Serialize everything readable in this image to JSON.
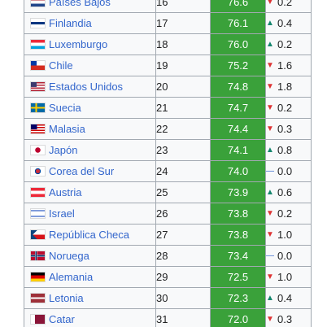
{
  "colors": {
    "score_bg": "#3aa13a",
    "up": "#14866d",
    "down": "#d33",
    "same": "#36c"
  },
  "rows": [
    {
      "country": "Países Bajos",
      "flag": "flag-netherlands",
      "rank": "16",
      "score": "76.6",
      "trend": "down",
      "trend_icon": "down-triangle-icon",
      "change": "0.2"
    },
    {
      "country": "Finlandia",
      "flag": "flag-finland",
      "rank": "17",
      "score": "76.1",
      "trend": "up",
      "trend_icon": "up-triangle-icon",
      "change": "0.4"
    },
    {
      "country": "Luxemburgo",
      "flag": "flag-luxembourg",
      "rank": "18",
      "score": "76.0",
      "trend": "up",
      "trend_icon": "up-triangle-icon",
      "change": "0.2"
    },
    {
      "country": "Chile",
      "flag": "flag-chile",
      "rank": "19",
      "score": "75.2",
      "trend": "down",
      "trend_icon": "down-triangle-icon",
      "change": "1.6"
    },
    {
      "country": "Estados Unidos",
      "flag": "flag-united-states",
      "rank": "20",
      "score": "74.8",
      "trend": "down",
      "trend_icon": "down-triangle-icon",
      "change": "1.8"
    },
    {
      "country": "Suecia",
      "flag": "flag-sweden",
      "rank": "21",
      "score": "74.7",
      "trend": "down",
      "trend_icon": "down-triangle-icon",
      "change": "0.2"
    },
    {
      "country": "Malasia",
      "flag": "flag-malaysia",
      "rank": "22",
      "score": "74.4",
      "trend": "down",
      "trend_icon": "down-triangle-icon",
      "change": "0.3"
    },
    {
      "country": "Japón",
      "flag": "flag-japan",
      "rank": "23",
      "score": "74.1",
      "trend": "up",
      "trend_icon": "up-triangle-icon",
      "change": "0.8"
    },
    {
      "country": "Corea del Sur",
      "flag": "flag-south-korea",
      "rank": "24",
      "score": "74.0",
      "trend": "same",
      "trend_icon": "dash-icon",
      "change": "0.0"
    },
    {
      "country": "Austria",
      "flag": "flag-austria",
      "rank": "25",
      "score": "73.9",
      "trend": "up",
      "trend_icon": "up-triangle-icon",
      "change": "0.6"
    },
    {
      "country": "Israel",
      "flag": "flag-israel",
      "rank": "26",
      "score": "73.8",
      "trend": "down",
      "trend_icon": "down-triangle-icon",
      "change": "0.2"
    },
    {
      "country": "República Checa",
      "flag": "flag-czech-republic",
      "rank": "27",
      "score": "73.8",
      "trend": "down",
      "trend_icon": "down-triangle-icon",
      "change": "1.0"
    },
    {
      "country": "Noruega",
      "flag": "flag-norway",
      "rank": "28",
      "score": "73.4",
      "trend": "same",
      "trend_icon": "dash-icon",
      "change": "0.0"
    },
    {
      "country": "Alemania",
      "flag": "flag-germany",
      "rank": "29",
      "score": "72.5",
      "trend": "down",
      "trend_icon": "down-triangle-icon",
      "change": "1.0"
    },
    {
      "country": "Letonia",
      "flag": "flag-latvia",
      "rank": "30",
      "score": "72.3",
      "trend": "up",
      "trend_icon": "up-triangle-icon",
      "change": "0.4"
    },
    {
      "country": "Catar",
      "flag": "flag-qatar",
      "rank": "31",
      "score": "72.0",
      "trend": "down",
      "trend_icon": "down-triangle-icon",
      "change": "0.3"
    }
  ]
}
